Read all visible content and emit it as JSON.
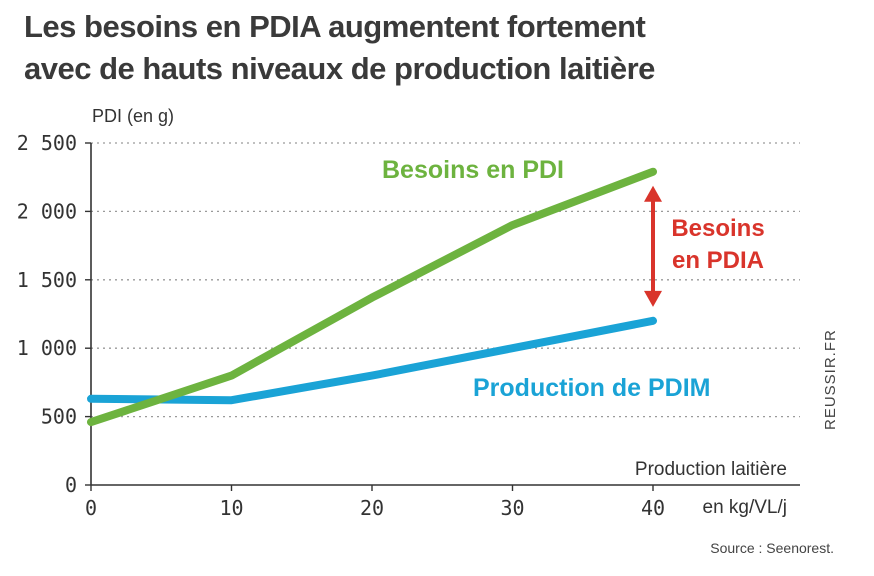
{
  "title_line1": "Les besoins en PDIA augmentent fortement",
  "title_line2": "avec de hauts niveaux de production laitière",
  "source": "Source : Seenorest.",
  "watermark": "REUSSIR.FR",
  "chart_data": {
    "type": "line",
    "ylabel": "PDI (en g)",
    "xlabel_line1": "Production laitière",
    "xlabel_line2": "en kg/VL/j",
    "xlim": [
      0,
      40
    ],
    "ylim": [
      0,
      2500
    ],
    "xticks": [
      0,
      10,
      20,
      30,
      40
    ],
    "yticks": [
      0,
      500,
      1000,
      1500,
      2000,
      2500
    ],
    "ytick_labels": [
      "0",
      "500",
      "1 000",
      "1 500",
      "2 000",
      "2 500"
    ],
    "grid": "horizontal-dotted",
    "series": [
      {
        "name": "Besoins en PDI",
        "color": "#6db33f",
        "x": [
          0,
          10,
          20,
          30,
          40
        ],
        "y": [
          460,
          800,
          1370,
          1900,
          2290
        ]
      },
      {
        "name": "Production de PDIM",
        "color": "#1aa3d6",
        "x": [
          0,
          10,
          20,
          30,
          40
        ],
        "y": [
          630,
          620,
          800,
          1000,
          1200
        ]
      }
    ],
    "annotation": {
      "label_line1": "Besoins",
      "label_line2": "en PDIA",
      "color": "#d9342b",
      "x": 40,
      "from": 1200,
      "to": 2290
    }
  }
}
